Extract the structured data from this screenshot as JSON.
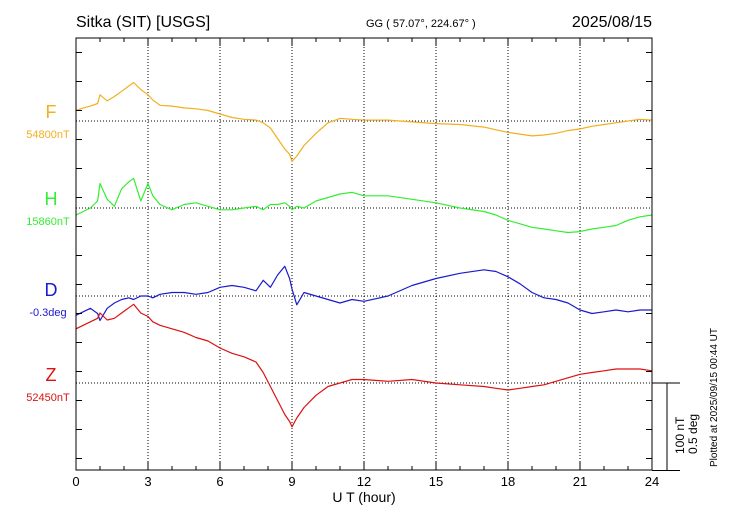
{
  "chart_data": {
    "type": "line",
    "title": "Sitka (SIT)  [USGS]",
    "coords_label": "GG ( 57.07°, 224.67° )",
    "date_label": "2025/08/15",
    "xlabel": "U T (hour)",
    "xlim": [
      0,
      24
    ],
    "xticks": [
      "0",
      "3",
      "6",
      "9",
      "12",
      "15",
      "18",
      "21",
      "24"
    ],
    "grid": true,
    "scale_bar": {
      "line1": "100 nT",
      "line2": "0.5 deg",
      "value_nT": 100
    },
    "footnote": "Plotted at 2025/09/15 00:44 UT",
    "series": [
      {
        "name": "F",
        "baseline_label": "54800nT",
        "color": "#f0b020",
        "baseline": 0,
        "x": [
          0,
          0.3,
          0.6,
          0.9,
          1.0,
          1.3,
          1.6,
          1.9,
          2.2,
          2.4,
          2.7,
          3.0,
          3.2,
          3.5,
          4.0,
          4.5,
          5.0,
          5.5,
          6.0,
          6.5,
          7.0,
          7.5,
          7.8,
          8.1,
          8.4,
          8.7,
          8.9,
          9.0,
          9.2,
          9.5,
          10.0,
          10.5,
          11.0,
          11.5,
          12.0,
          13.0,
          14.0,
          15.0,
          16.0,
          17.0,
          17.5,
          18.0,
          18.5,
          19.0,
          19.5,
          20.0,
          20.5,
          21.0,
          21.5,
          22.0,
          22.5,
          23.0,
          23.5,
          24.0
        ],
        "y": [
          12,
          15,
          17,
          20,
          30,
          23,
          28,
          34,
          40,
          44,
          36,
          30,
          24,
          18,
          17,
          15,
          14,
          12,
          8,
          4,
          2,
          1,
          -2,
          -8,
          -20,
          -32,
          -38,
          -46,
          -40,
          -28,
          -14,
          -2,
          3,
          2,
          1,
          1,
          -1,
          -3,
          -4,
          -7,
          -10,
          -13,
          -15,
          -17,
          -16,
          -14,
          -11,
          -9,
          -6,
          -4,
          -2,
          0,
          2,
          1
        ]
      },
      {
        "name": "H",
        "baseline_label": "15860nT",
        "color": "#33ee33",
        "baseline": 0,
        "x": [
          0,
          0.3,
          0.6,
          0.9,
          1.0,
          1.3,
          1.6,
          1.9,
          2.2,
          2.4,
          2.7,
          3.0,
          3.2,
          3.5,
          4.0,
          4.5,
          5.0,
          5.5,
          6.0,
          6.5,
          7.0,
          7.5,
          7.8,
          8.1,
          8.4,
          8.7,
          8.9,
          9.0,
          9.2,
          9.5,
          10.0,
          10.5,
          11.0,
          11.5,
          12.0,
          13.0,
          14.0,
          15.0,
          16.0,
          17.0,
          17.5,
          18.0,
          18.5,
          19.0,
          19.5,
          20.0,
          20.5,
          21.0,
          21.5,
          22.0,
          22.5,
          23.0,
          23.5,
          24.0
        ],
        "y": [
          -8,
          -4,
          0,
          8,
          28,
          10,
          2,
          22,
          30,
          34,
          8,
          28,
          14,
          4,
          -2,
          4,
          6,
          2,
          -2,
          -2,
          0,
          2,
          -2,
          4,
          4,
          6,
          2,
          -2,
          2,
          0,
          8,
          12,
          16,
          18,
          14,
          14,
          10,
          6,
          0,
          -4,
          -8,
          -14,
          -18,
          -22,
          -24,
          -26,
          -28,
          -27,
          -24,
          -22,
          -20,
          -14,
          -10,
          -8
        ]
      },
      {
        "name": "D",
        "baseline_label": "-0.3deg",
        "color": "#1a1acc",
        "baseline": 0,
        "x": [
          0,
          0.3,
          0.6,
          0.9,
          1.0,
          1.3,
          1.6,
          1.9,
          2.2,
          2.4,
          2.7,
          3.0,
          3.2,
          3.5,
          4.0,
          4.5,
          5.0,
          5.5,
          6.0,
          6.5,
          7.0,
          7.5,
          7.8,
          8.1,
          8.4,
          8.7,
          8.9,
          9.0,
          9.2,
          9.5,
          10.0,
          10.5,
          11.0,
          11.5,
          12.0,
          13.0,
          14.0,
          15.0,
          16.0,
          17.0,
          17.5,
          18.0,
          18.5,
          19.0,
          19.5,
          20.0,
          20.5,
          21.0,
          21.5,
          22.0,
          22.5,
          23.0,
          23.5,
          24.0
        ],
        "y": [
          -22,
          -18,
          -14,
          -20,
          -28,
          -14,
          -8,
          -4,
          -2,
          -4,
          0,
          0,
          -2,
          2,
          4,
          4,
          2,
          4,
          10,
          12,
          10,
          6,
          18,
          10,
          24,
          34,
          20,
          8,
          -10,
          4,
          0,
          -4,
          -8,
          -4,
          -6,
          0,
          12,
          20,
          26,
          30,
          28,
          22,
          14,
          4,
          -2,
          -4,
          -8,
          -16,
          -20,
          -18,
          -16,
          -18,
          -16,
          -16
        ]
      },
      {
        "name": "Z",
        "baseline_label": "52450nT",
        "color": "#dd1111",
        "baseline": 0,
        "x": [
          0,
          0.3,
          0.6,
          0.9,
          1.0,
          1.3,
          1.6,
          1.9,
          2.2,
          2.4,
          2.7,
          3.0,
          3.2,
          3.5,
          4.0,
          4.5,
          5.0,
          5.5,
          6.0,
          6.5,
          7.0,
          7.5,
          7.8,
          8.1,
          8.4,
          8.7,
          8.9,
          9.0,
          9.2,
          9.5,
          10.0,
          10.5,
          11.0,
          11.5,
          12.0,
          13.0,
          14.0,
          15.0,
          16.0,
          17.0,
          17.5,
          18.0,
          18.5,
          19.0,
          19.5,
          20.0,
          20.5,
          21.0,
          21.5,
          22.0,
          22.5,
          23.0,
          23.5,
          24.0
        ],
        "y": [
          62,
          66,
          70,
          74,
          80,
          72,
          74,
          80,
          86,
          90,
          80,
          76,
          70,
          66,
          62,
          58,
          52,
          48,
          40,
          34,
          30,
          24,
          12,
          -4,
          -20,
          -36,
          -44,
          -50,
          -40,
          -28,
          -14,
          -4,
          0,
          4,
          4,
          2,
          4,
          0,
          -2,
          -4,
          -6,
          -8,
          -6,
          -4,
          -2,
          2,
          6,
          10,
          12,
          14,
          16,
          16,
          16,
          14
        ]
      }
    ]
  }
}
